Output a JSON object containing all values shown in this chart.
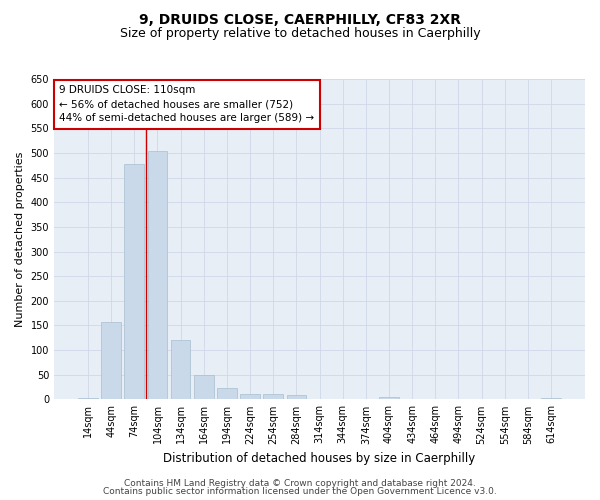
{
  "title": "9, DRUIDS CLOSE, CAERPHILLY, CF83 2XR",
  "subtitle": "Size of property relative to detached houses in Caerphilly",
  "xlabel": "Distribution of detached houses by size in Caerphilly",
  "ylabel": "Number of detached properties",
  "categories": [
    "14sqm",
    "44sqm",
    "74sqm",
    "104sqm",
    "134sqm",
    "164sqm",
    "194sqm",
    "224sqm",
    "254sqm",
    "284sqm",
    "314sqm",
    "344sqm",
    "374sqm",
    "404sqm",
    "434sqm",
    "464sqm",
    "494sqm",
    "524sqm",
    "554sqm",
    "584sqm",
    "614sqm"
  ],
  "values": [
    2,
    158,
    477,
    504,
    120,
    50,
    23,
    12,
    12,
    8,
    0,
    0,
    0,
    5,
    0,
    0,
    0,
    0,
    0,
    0,
    3
  ],
  "bar_color": "#c9d9ea",
  "bar_edge_color": "#a8bfcf",
  "vline_color": "#cc0000",
  "vline_x_index": 3,
  "annotation_line1": "9 DRUIDS CLOSE: 110sqm",
  "annotation_line2": "← 56% of detached houses are smaller (752)",
  "annotation_line3": "44% of semi-detached houses are larger (589) →",
  "annotation_box_facecolor": "#ffffff",
  "annotation_box_edgecolor": "#cc0000",
  "ylim": [
    0,
    650
  ],
  "yticks": [
    0,
    50,
    100,
    150,
    200,
    250,
    300,
    350,
    400,
    450,
    500,
    550,
    600,
    650
  ],
  "grid_color": "#d0d8e8",
  "background_color": "#e8eef5",
  "footer1": "Contains HM Land Registry data © Crown copyright and database right 2024.",
  "footer2": "Contains public sector information licensed under the Open Government Licence v3.0.",
  "title_fontsize": 10,
  "subtitle_fontsize": 9,
  "annotation_fontsize": 7.5,
  "tick_fontsize": 7,
  "ylabel_fontsize": 8,
  "xlabel_fontsize": 8.5,
  "footer_fontsize": 6.5
}
